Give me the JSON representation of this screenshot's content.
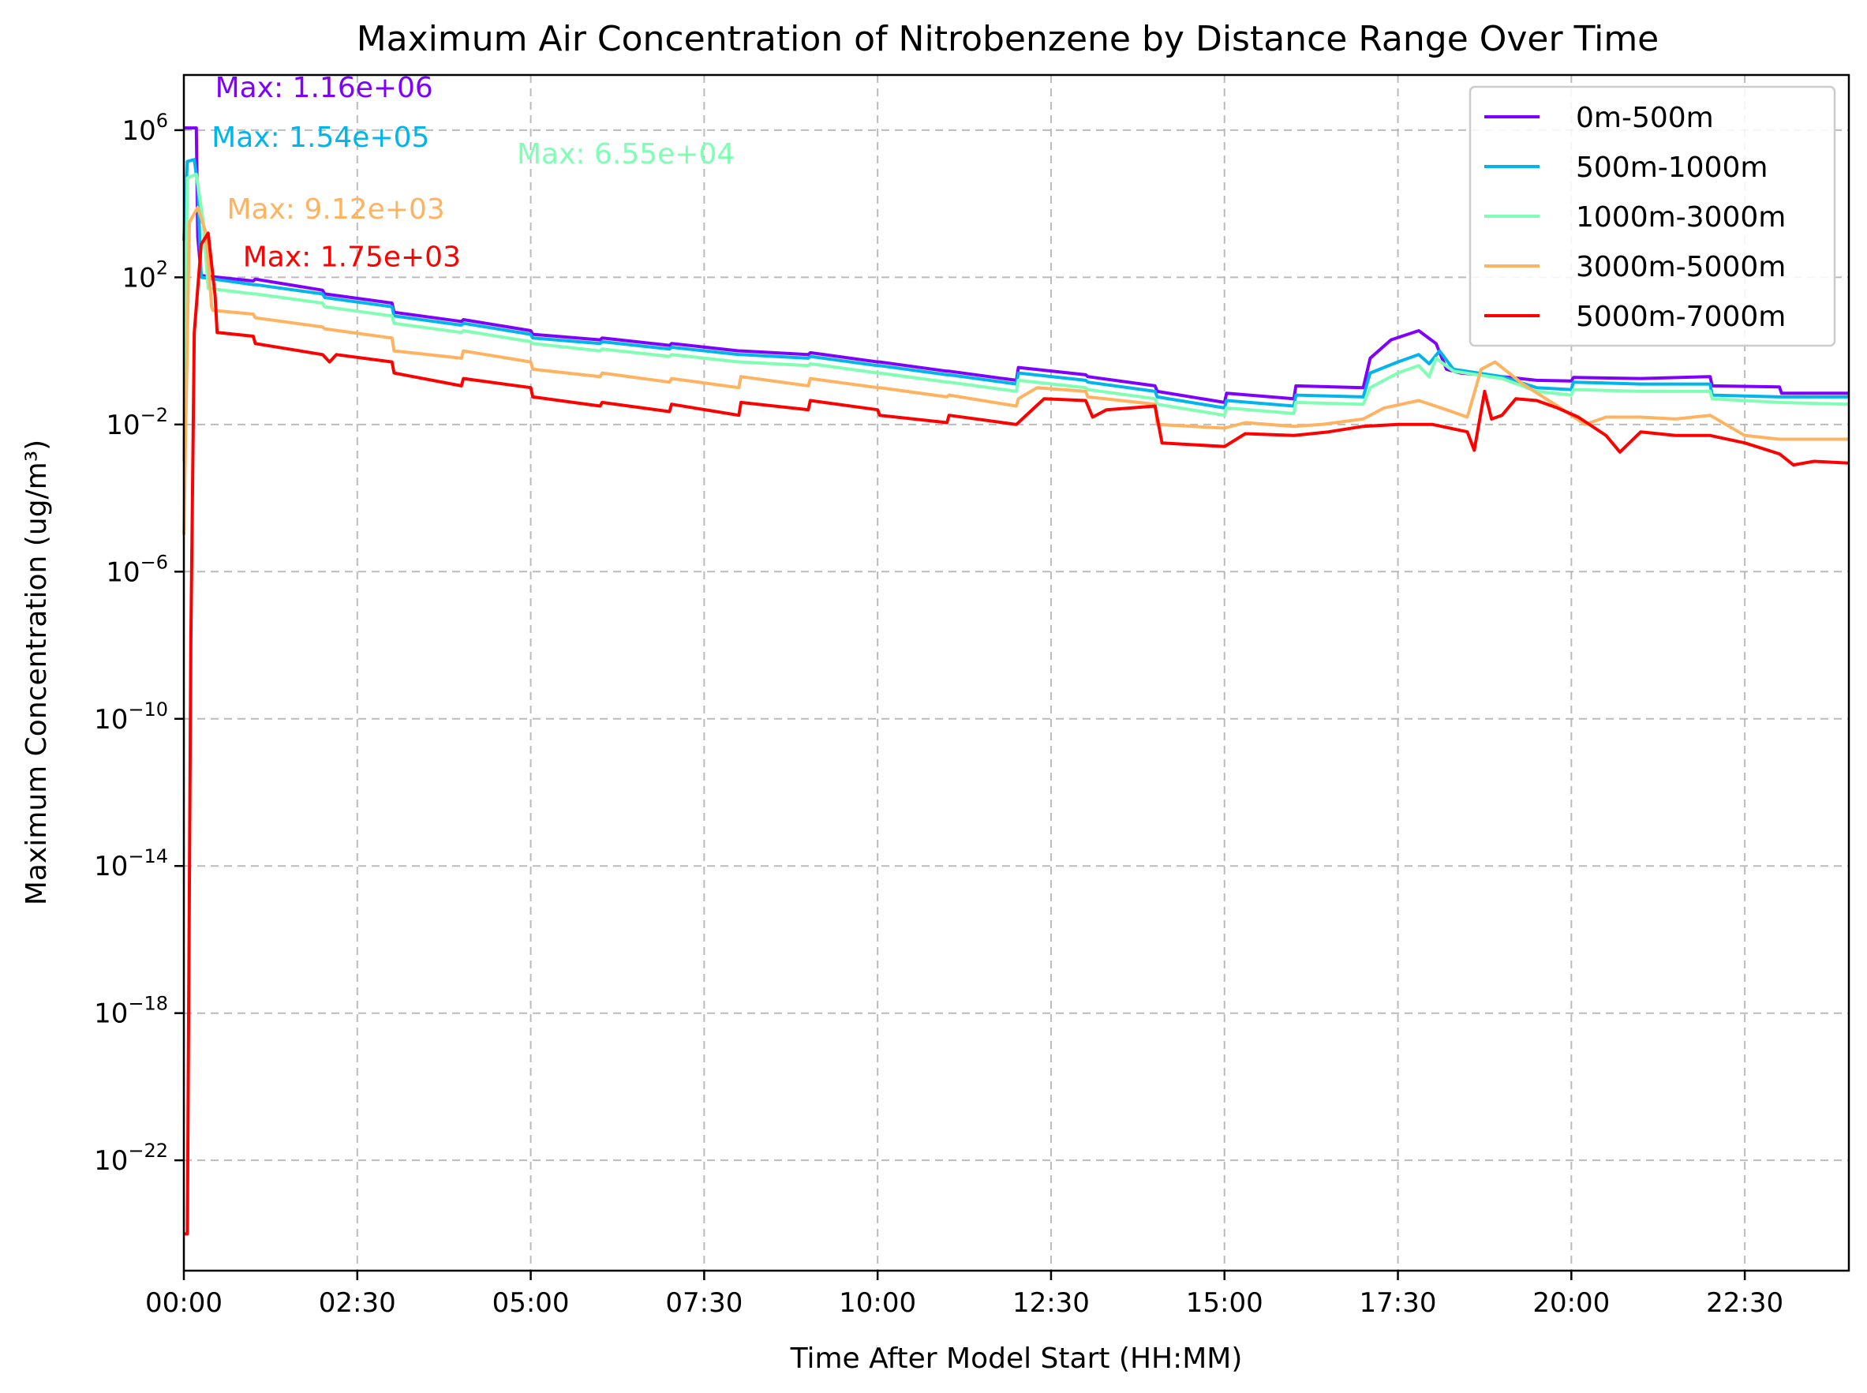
{
  "chart_data": {
    "type": "line",
    "title": "Maximum Air Concentration of Nitrobenzene by Distance Range Over Time",
    "xlabel": "Time After Model Start (HH:MM)",
    "ylabel": "Maximum Concentration (ug/m³)",
    "y_scale": "log",
    "x_unit": "hours",
    "xlim": [
      0,
      24
    ],
    "ylim_exp": [
      -25,
      7.5
    ],
    "grid": true,
    "legend_position": "top-right",
    "x_ticks": [
      {
        "v": 0,
        "label": "00:00"
      },
      {
        "v": 2.5,
        "label": "02:30"
      },
      {
        "v": 5,
        "label": "05:00"
      },
      {
        "v": 7.5,
        "label": "07:30"
      },
      {
        "v": 10,
        "label": "10:00"
      },
      {
        "v": 12.5,
        "label": "12:30"
      },
      {
        "v": 15,
        "label": "15:00"
      },
      {
        "v": 17.5,
        "label": "17:30"
      },
      {
        "v": 20,
        "label": "20:00"
      },
      {
        "v": 22.5,
        "label": "22:30"
      }
    ],
    "y_ticks": [
      {
        "exp": 6,
        "base": "10",
        "sup": "6"
      },
      {
        "exp": 2,
        "base": "10",
        "sup": "2"
      },
      {
        "exp": -2,
        "base": "10",
        "sup": "−2"
      },
      {
        "exp": -6,
        "base": "10",
        "sup": "−6"
      },
      {
        "exp": -10,
        "base": "10",
        "sup": "−10"
      },
      {
        "exp": -14,
        "base": "10",
        "sup": "−14"
      },
      {
        "exp": -18,
        "base": "10",
        "sup": "−18"
      },
      {
        "exp": -22,
        "base": "10",
        "sup": "−22"
      }
    ],
    "series": [
      {
        "name": "0m-500m",
        "color": "#8000ff",
        "max_label": "Max: 1.16e+06",
        "points": [
          [
            0,
            6.06
          ],
          [
            0.1,
            6.06
          ],
          [
            0.18,
            6.06
          ],
          [
            0.2,
            3.1
          ],
          [
            0.25,
            2.05
          ],
          [
            1,
            1.9
          ],
          [
            1.03,
            1.95
          ],
          [
            2,
            1.65
          ],
          [
            2.03,
            1.55
          ],
          [
            3,
            1.3
          ],
          [
            3.03,
            1.05
          ],
          [
            4,
            0.8
          ],
          [
            4.03,
            0.85
          ],
          [
            5,
            0.55
          ],
          [
            5.03,
            0.45
          ],
          [
            6,
            0.3
          ],
          [
            6.03,
            0.35
          ],
          [
            7,
            0.15
          ],
          [
            7.03,
            0.2
          ],
          [
            8,
            0.0
          ],
          [
            8.03,
            0.0
          ],
          [
            9,
            -0.1
          ],
          [
            9.03,
            -0.05
          ],
          [
            10,
            -0.3
          ],
          [
            10.03,
            -0.3
          ],
          [
            11,
            -0.55
          ],
          [
            11.03,
            -0.55
          ],
          [
            12,
            -0.8
          ],
          [
            12.03,
            -0.45
          ],
          [
            13,
            -0.65
          ],
          [
            13.03,
            -0.7
          ],
          [
            14,
            -0.95
          ],
          [
            14.03,
            -1.1
          ],
          [
            15,
            -1.4
          ],
          [
            15.03,
            -1.15
          ],
          [
            16,
            -1.3
          ],
          [
            16.03,
            -0.95
          ],
          [
            17,
            -1.0
          ],
          [
            17.1,
            -0.2
          ],
          [
            17.4,
            0.3
          ],
          [
            17.8,
            0.55
          ],
          [
            18.05,
            0.2
          ],
          [
            18.2,
            -0.5
          ],
          [
            18.4,
            -0.6
          ],
          [
            19,
            -0.7
          ],
          [
            19.5,
            -0.8
          ],
          [
            20,
            -0.82
          ],
          [
            20.03,
            -0.72
          ],
          [
            21,
            -0.75
          ],
          [
            22,
            -0.7
          ],
          [
            22.03,
            -0.95
          ],
          [
            23,
            -0.98
          ],
          [
            23.03,
            -1.15
          ],
          [
            24,
            -1.15
          ]
        ]
      },
      {
        "name": "500m-1000m",
        "color": "#00b5eb",
        "max_label": "Max: 1.54e+05",
        "points": [
          [
            0,
            3.0
          ],
          [
            0.05,
            5.15
          ],
          [
            0.15,
            5.2
          ],
          [
            0.2,
            4.5
          ],
          [
            0.25,
            2.0
          ],
          [
            1,
            1.8
          ],
          [
            1.03,
            1.8
          ],
          [
            2,
            1.55
          ],
          [
            2.03,
            1.45
          ],
          [
            3,
            1.2
          ],
          [
            3.03,
            0.95
          ],
          [
            4,
            0.7
          ],
          [
            4.03,
            0.75
          ],
          [
            5,
            0.45
          ],
          [
            5.03,
            0.35
          ],
          [
            6,
            0.2
          ],
          [
            6.03,
            0.25
          ],
          [
            7,
            0.05
          ],
          [
            7.03,
            0.1
          ],
          [
            8,
            -0.1
          ],
          [
            8.03,
            -0.1
          ],
          [
            9,
            -0.2
          ],
          [
            9.03,
            -0.15
          ],
          [
            10,
            -0.4
          ],
          [
            10.03,
            -0.4
          ],
          [
            11,
            -0.65
          ],
          [
            11.03,
            -0.65
          ],
          [
            12,
            -0.9
          ],
          [
            12.03,
            -0.6
          ],
          [
            13,
            -0.8
          ],
          [
            13.03,
            -0.85
          ],
          [
            14,
            -1.1
          ],
          [
            14.03,
            -1.25
          ],
          [
            15,
            -1.55
          ],
          [
            15.03,
            -1.35
          ],
          [
            16,
            -1.5
          ],
          [
            16.03,
            -1.2
          ],
          [
            17,
            -1.25
          ],
          [
            17.1,
            -0.6
          ],
          [
            17.5,
            -0.3
          ],
          [
            17.8,
            -0.1
          ],
          [
            17.95,
            -0.35
          ],
          [
            18.1,
            -0.0
          ],
          [
            18.3,
            -0.5
          ],
          [
            19,
            -0.7
          ],
          [
            19.5,
            -1.0
          ],
          [
            20,
            -1.05
          ],
          [
            20.03,
            -0.85
          ],
          [
            21,
            -0.9
          ],
          [
            22,
            -0.9
          ],
          [
            22.03,
            -1.2
          ],
          [
            23,
            -1.25
          ],
          [
            24,
            -1.25
          ]
        ]
      },
      {
        "name": "1000m-3000m",
        "color": "#80ffb4",
        "max_label": "Max: 6.55e+04",
        "points": [
          [
            0,
            -3.0
          ],
          [
            0.05,
            4.7
          ],
          [
            0.18,
            4.8
          ],
          [
            0.28,
            3.5
          ],
          [
            0.35,
            1.7
          ],
          [
            1,
            1.55
          ],
          [
            1.03,
            1.55
          ],
          [
            2,
            1.3
          ],
          [
            2.03,
            1.2
          ],
          [
            3,
            0.95
          ],
          [
            3.03,
            0.75
          ],
          [
            4,
            0.5
          ],
          [
            4.03,
            0.55
          ],
          [
            5,
            0.25
          ],
          [
            5.03,
            0.2
          ],
          [
            6,
            0.0
          ],
          [
            6.03,
            0.05
          ],
          [
            7,
            -0.15
          ],
          [
            7.03,
            -0.1
          ],
          [
            8,
            -0.3
          ],
          [
            8.03,
            -0.3
          ],
          [
            9,
            -0.4
          ],
          [
            9.03,
            -0.35
          ],
          [
            10,
            -0.6
          ],
          [
            10.03,
            -0.6
          ],
          [
            11,
            -0.85
          ],
          [
            11.03,
            -0.85
          ],
          [
            12,
            -1.1
          ],
          [
            12.03,
            -0.8
          ],
          [
            13,
            -1.0
          ],
          [
            13.03,
            -1.05
          ],
          [
            14,
            -1.3
          ],
          [
            14.03,
            -1.45
          ],
          [
            15,
            -1.75
          ],
          [
            15.03,
            -1.55
          ],
          [
            16,
            -1.7
          ],
          [
            16.03,
            -1.4
          ],
          [
            17,
            -1.45
          ],
          [
            17.1,
            -1.0
          ],
          [
            17.5,
            -0.6
          ],
          [
            17.8,
            -0.4
          ],
          [
            17.95,
            -0.7
          ],
          [
            18.05,
            -0.2
          ],
          [
            18.3,
            -0.55
          ],
          [
            19,
            -0.75
          ],
          [
            19.5,
            -1.1
          ],
          [
            20,
            -1.2
          ],
          [
            20.03,
            -1.05
          ],
          [
            21,
            -1.1
          ],
          [
            22,
            -1.1
          ],
          [
            22.03,
            -1.3
          ],
          [
            23,
            -1.4
          ],
          [
            24,
            -1.45
          ]
        ]
      },
      {
        "name": "3000m-5000m",
        "color": "#ffb360",
        "max_label": "Max: 9.12e+03",
        "points": [
          [
            0,
            -5.0
          ],
          [
            0.08,
            3.5
          ],
          [
            0.2,
            3.9
          ],
          [
            0.32,
            3.2
          ],
          [
            0.4,
            1.2
          ],
          [
            0.42,
            1.1
          ],
          [
            1,
            1.0
          ],
          [
            1.03,
            0.9
          ],
          [
            2,
            0.65
          ],
          [
            2.03,
            0.6
          ],
          [
            3,
            0.35
          ],
          [
            3.03,
            0.0
          ],
          [
            4,
            -0.2
          ],
          [
            4.03,
            0.0
          ],
          [
            5,
            -0.3
          ],
          [
            5.03,
            -0.5
          ],
          [
            6,
            -0.7
          ],
          [
            6.03,
            -0.6
          ],
          [
            7,
            -0.85
          ],
          [
            7.03,
            -0.75
          ],
          [
            8,
            -1.0
          ],
          [
            8.03,
            -0.7
          ],
          [
            9,
            -0.95
          ],
          [
            9.03,
            -0.75
          ],
          [
            10,
            -1.0
          ],
          [
            10.03,
            -1.0
          ],
          [
            11,
            -1.25
          ],
          [
            11.03,
            -1.2
          ],
          [
            12,
            -1.5
          ],
          [
            12.03,
            -1.3
          ],
          [
            12.3,
            -1.0
          ],
          [
            13,
            -1.1
          ],
          [
            13.03,
            -1.25
          ],
          [
            14,
            -1.45
          ],
          [
            14.03,
            -2.0
          ],
          [
            15,
            -2.1
          ],
          [
            15.3,
            -1.95
          ],
          [
            16,
            -2.05
          ],
          [
            16.4,
            -2.0
          ],
          [
            17,
            -1.85
          ],
          [
            17.3,
            -1.55
          ],
          [
            17.8,
            -1.35
          ],
          [
            18.2,
            -1.6
          ],
          [
            18.5,
            -1.8
          ],
          [
            18.7,
            -0.5
          ],
          [
            18.9,
            -0.3
          ],
          [
            19.1,
            -0.6
          ],
          [
            19.3,
            -0.9
          ],
          [
            19.8,
            -1.5
          ],
          [
            20.2,
            -2.0
          ],
          [
            20.5,
            -1.8
          ],
          [
            21,
            -1.8
          ],
          [
            21.5,
            -1.85
          ],
          [
            22,
            -1.75
          ],
          [
            22.5,
            -2.3
          ],
          [
            23,
            -2.4
          ],
          [
            24,
            -2.4
          ]
        ]
      },
      {
        "name": "5000m-7000m",
        "color": "#ff0000",
        "max_label": "Max: 1.75e+03",
        "points": [
          [
            0,
            -24.0
          ],
          [
            0.05,
            -24.0
          ],
          [
            0.1,
            -8.0
          ],
          [
            0.15,
            0.5
          ],
          [
            0.25,
            2.9
          ],
          [
            0.35,
            3.2
          ],
          [
            0.45,
            1.5
          ],
          [
            0.48,
            0.5
          ],
          [
            1,
            0.4
          ],
          [
            1.03,
            0.2
          ],
          [
            2,
            -0.1
          ],
          [
            2.1,
            -0.3
          ],
          [
            2.2,
            -0.1
          ],
          [
            3,
            -0.3
          ],
          [
            3.03,
            -0.6
          ],
          [
            4,
            -0.95
          ],
          [
            4.03,
            -0.75
          ],
          [
            5,
            -1.0
          ],
          [
            5.03,
            -1.25
          ],
          [
            6,
            -1.5
          ],
          [
            6.03,
            -1.4
          ],
          [
            7,
            -1.65
          ],
          [
            7.03,
            -1.45
          ],
          [
            8,
            -1.75
          ],
          [
            8.03,
            -1.4
          ],
          [
            9,
            -1.6
          ],
          [
            9.03,
            -1.35
          ],
          [
            10,
            -1.6
          ],
          [
            10.03,
            -1.75
          ],
          [
            11,
            -1.95
          ],
          [
            11.03,
            -1.75
          ],
          [
            12,
            -2.0
          ],
          [
            12.2,
            -1.65
          ],
          [
            12.4,
            -1.3
          ],
          [
            13,
            -1.35
          ],
          [
            13.1,
            -1.8
          ],
          [
            13.3,
            -1.6
          ],
          [
            14,
            -1.5
          ],
          [
            14.1,
            -2.5
          ],
          [
            15,
            -2.6
          ],
          [
            15.3,
            -2.25
          ],
          [
            16,
            -2.3
          ],
          [
            16.5,
            -2.2
          ],
          [
            17,
            -2.05
          ],
          [
            17.5,
            -2.0
          ],
          [
            18,
            -2.0
          ],
          [
            18.5,
            -2.2
          ],
          [
            18.6,
            -2.7
          ],
          [
            18.75,
            -1.1
          ],
          [
            18.85,
            -1.85
          ],
          [
            19,
            -1.75
          ],
          [
            19.2,
            -1.3
          ],
          [
            19.5,
            -1.35
          ],
          [
            19.8,
            -1.55
          ],
          [
            20.1,
            -1.8
          ],
          [
            20.5,
            -2.3
          ],
          [
            20.7,
            -2.75
          ],
          [
            21,
            -2.2
          ],
          [
            21.5,
            -2.3
          ],
          [
            22,
            -2.3
          ],
          [
            22.5,
            -2.5
          ],
          [
            23,
            -2.8
          ],
          [
            23.2,
            -3.1
          ],
          [
            23.5,
            -3.0
          ],
          [
            24,
            -3.05
          ]
        ]
      }
    ],
    "annotations": [
      {
        "series": 0,
        "text": "Max: 1.16e+06",
        "x": 0.45,
        "y_exp": 6.9
      },
      {
        "series": 1,
        "text": "Max: 1.54e+05",
        "x": 0.4,
        "y_exp": 5.55
      },
      {
        "series": 2,
        "text": "Max: 6.55e+04",
        "x": 4.8,
        "y_exp": 5.1
      },
      {
        "series": 3,
        "text": "Max: 9.12e+03",
        "x": 0.62,
        "y_exp": 3.6
      },
      {
        "series": 4,
        "text": "Max: 1.75e+03",
        "x": 0.85,
        "y_exp": 2.3
      }
    ]
  }
}
